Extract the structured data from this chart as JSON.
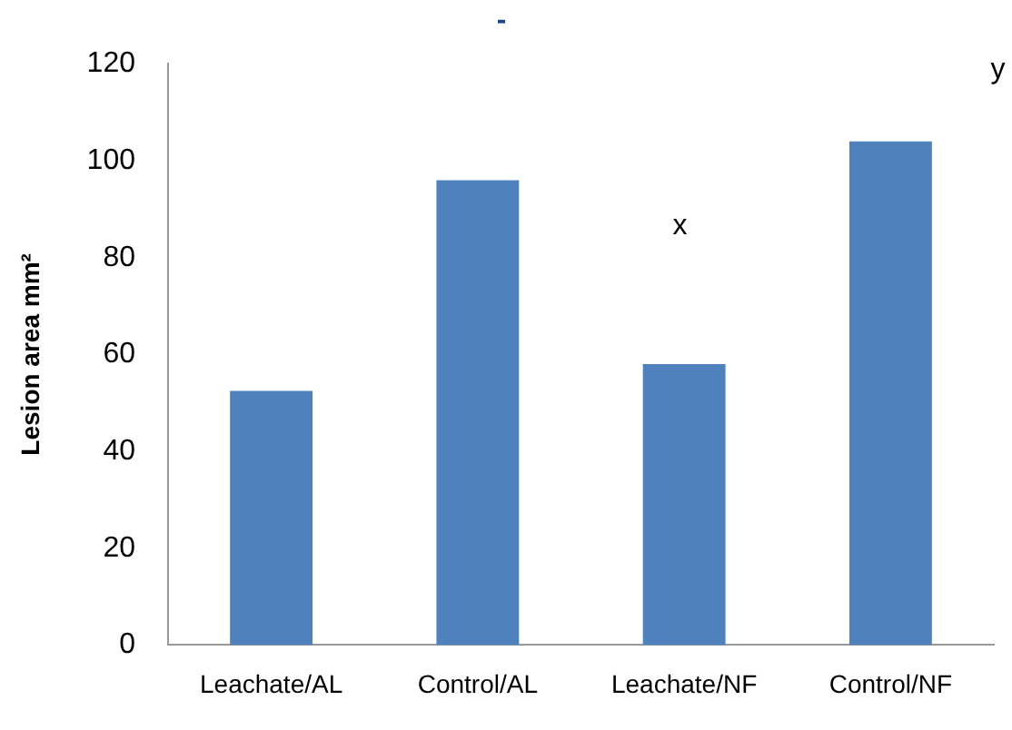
{
  "chart_data": {
    "type": "bar",
    "title": "-",
    "ylabel": "Lesion area mm²",
    "categories": [
      "Leachate/AL",
      "Control/AL",
      "Leachate/NF",
      "Control/NF"
    ],
    "values": [
      52.5,
      96,
      58,
      104
    ],
    "color": "#4f81bd",
    "ylim": [
      0,
      120
    ],
    "yticks": [
      0,
      20,
      40,
      60,
      80,
      100,
      120
    ],
    "grid": false,
    "legend": false,
    "annotations": [
      "x",
      "y"
    ]
  }
}
